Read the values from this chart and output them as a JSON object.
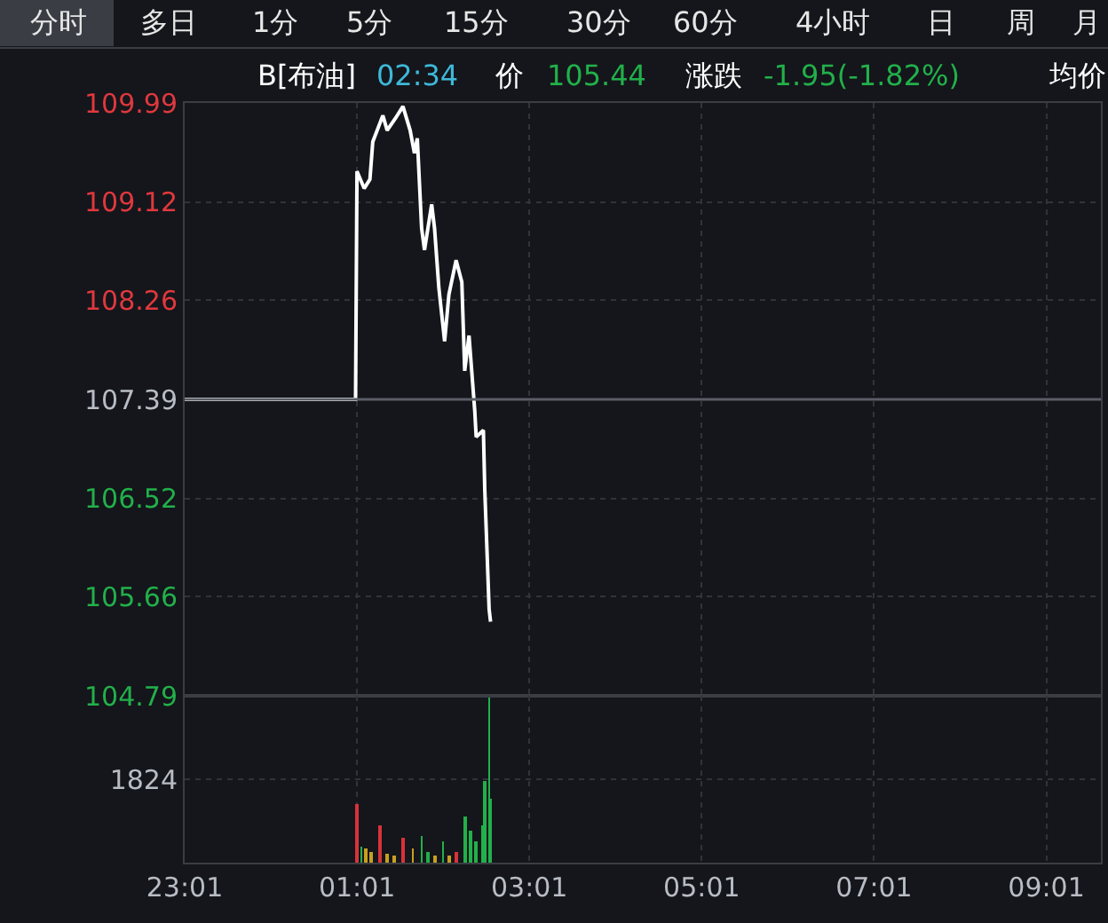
{
  "chart_data": [
    {
      "type": "line",
      "color": "#ffffff",
      "annotations": [
        "分时",
        "多日",
        "1分",
        "5分",
        "15分",
        "30分",
        "60分",
        "4小时",
        "日",
        "周",
        "月",
        "B[布油]",
        "02:34",
        "价",
        "105.44",
        "涨跌",
        "-1.95(-1.82%)",
        "均价"
      ],
      "x": [
        "--06-01T23:01",
        "--06-02T01:00",
        "--06-02T01:01",
        "--06-02T01:06",
        "--06-02T01:10",
        "--06-02T01:12",
        "--06-02T01:19",
        "--06-02T01:22",
        "--06-02T01:28",
        "--06-02T01:33",
        "--06-02T01:38",
        "--06-02T01:41",
        "--06-02T01:43",
        "--06-02T01:46",
        "--06-02T01:48",
        "--06-02T01:53",
        "--06-02T01:55",
        "--06-02T01:58",
        "--06-02T02:02",
        "--06-02T02:05",
        "--06-02T02:10",
        "--06-02T02:14",
        "--06-02T02:16",
        "--06-02T02:19",
        "--06-02T02:23",
        "--06-02T02:24",
        "--06-02T02:29",
        "--06-02T02:30",
        "--06-02T02:33",
        "--06-02T02:34"
      ],
      "values": [
        107.39,
        107.39,
        109.39,
        109.24,
        109.32,
        109.65,
        109.88,
        109.75,
        109.86,
        109.96,
        109.75,
        109.55,
        109.68,
        108.89,
        108.7,
        109.1,
        108.89,
        108.37,
        107.9,
        108.31,
        108.61,
        108.42,
        107.64,
        107.95,
        107.29,
        107.06,
        107.12,
        106.59,
        105.55,
        105.44
      ],
      "ylim": [
        104.79,
        109.99
      ],
      "yticks": [
        104.79,
        105.66,
        106.52,
        107.39,
        108.26,
        109.12,
        109.99
      ],
      "xlim": [
        "--06-01T23:01",
        "--06-02T09:39"
      ],
      "xticks": [
        {
          "value": "--06-01T23:01",
          "label": "23:01"
        },
        {
          "value": "--06-02T01:01",
          "label": "01:01"
        },
        {
          "value": "--06-02T03:01",
          "label": "03:01"
        },
        {
          "value": "--06-02T05:01",
          "label": "05:01"
        },
        {
          "value": "--06-02T07:01",
          "label": "07:01"
        },
        {
          "value": "--06-02T09:01",
          "label": "09:01"
        }
      ],
      "grid": true,
      "tick_labels": "y",
      "ref_lines": [
        {
          "axis": "y",
          "value": 107.39,
          "color": "#5a5d66"
        }
      ]
    },
    {
      "type": "bar",
      "x": [
        "--06-02T01:01",
        "--06-02T01:04",
        "--06-02T01:07",
        "--06-02T01:11",
        "--06-02T01:17",
        "--06-02T01:22",
        "--06-02T01:27",
        "--06-02T01:33",
        "--06-02T01:40",
        "--06-02T01:46",
        "--06-02T01:50",
        "--06-02T01:55",
        "--06-02T02:01",
        "--06-02T02:05",
        "--06-02T02:10",
        "--06-02T02:16",
        "--06-02T02:20",
        "--06-02T02:24",
        "--06-02T02:29",
        "--06-02T02:30",
        "--06-02T02:33",
        "--06-02T02:34"
      ],
      "values": [
        1300,
        350,
        300,
        250,
        800,
        200,
        150,
        550,
        300,
        600,
        250,
        150,
        450,
        150,
        250,
        1000,
        700,
        450,
        800,
        1800,
        3600,
        1400
      ],
      "colors": [
        "#d8323a",
        "#22b04a",
        "#c8a020",
        "#c8a020",
        "#d8323a",
        "#c8a020",
        "#c8a020",
        "#d8323a",
        "#c8a020",
        "#22b04a",
        "#22b04a",
        "#c8a020",
        "#22b04a",
        "#c8a020",
        "#d8323a",
        "#22b04a",
        "#22b04a",
        "#22b04a",
        "#22b04a",
        "#22b04a",
        "#22b04a",
        "#22b04a"
      ],
      "ylim": [
        0,
        3648
      ],
      "yticks": [
        {
          "value": 0,
          "label": null
        },
        1824,
        {
          "value": 3648,
          "label": null
        }
      ],
      "xlim": [
        "--06-01T23:01",
        "--06-02T09:39"
      ],
      "xticks": [
        {
          "value": "--06-01T23:01",
          "label": "23:01"
        },
        {
          "value": "--06-02T01:01",
          "label": "01:01"
        },
        {
          "value": "--06-02T03:01",
          "label": "03:01"
        },
        {
          "value": "--06-02T05:01",
          "label": "05:01"
        },
        {
          "value": "--06-02T07:01",
          "label": "07:01"
        },
        {
          "value": "--06-02T09:01",
          "label": "09:01"
        }
      ],
      "grid": true
    }
  ]
}
